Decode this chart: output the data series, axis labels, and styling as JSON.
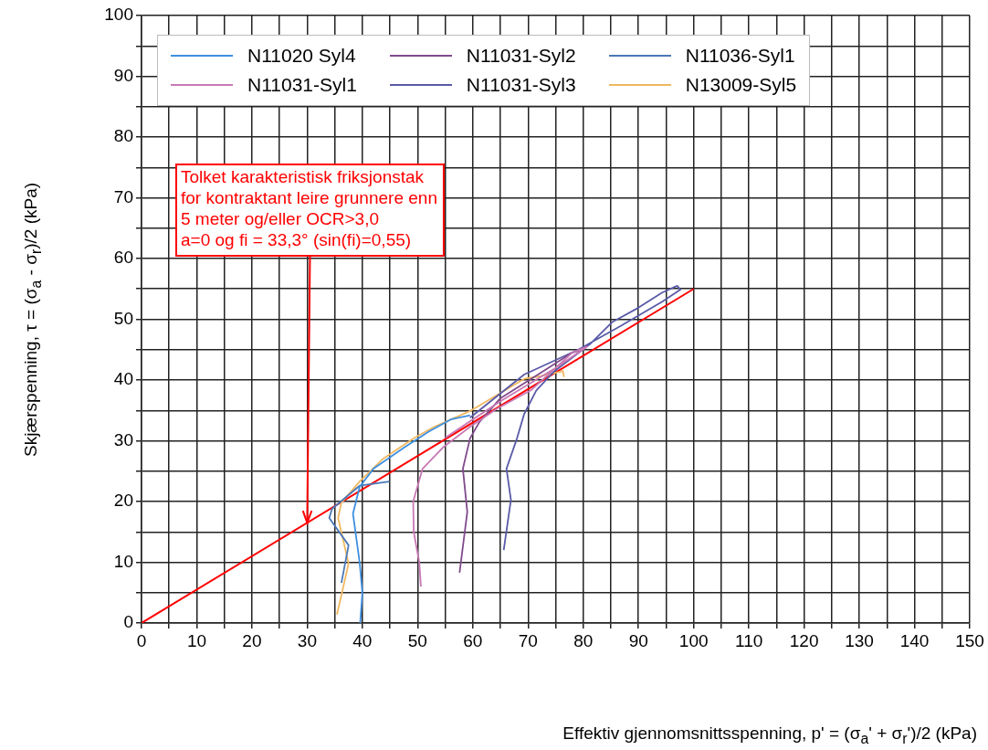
{
  "chart_data": {
    "type": "line",
    "xlabel": "Effektiv gjennomsnittsspenning, p' = (σ$_{a}$' + σ$_{r}$')/2  (kPa)",
    "ylabel": "Skjærspenning, τ = (σ$_{a}$ - σ$_{r}$)/2 (kPa)",
    "xlim": [
      0,
      150
    ],
    "ylim": [
      0,
      100
    ],
    "xticks": [
      0,
      {
        "value": 5,
        "label": null
      },
      10,
      {
        "value": 15,
        "label": null
      },
      20,
      {
        "value": 25,
        "label": null
      },
      30,
      {
        "value": 35,
        "label": null
      },
      40,
      {
        "value": 45,
        "label": null
      },
      50,
      {
        "value": 55,
        "label": null
      },
      60,
      {
        "value": 65,
        "label": null
      },
      70,
      {
        "value": 75,
        "label": null
      },
      80,
      {
        "value": 85,
        "label": null
      },
      90,
      {
        "value": 95,
        "label": null
      },
      100,
      {
        "value": 105,
        "label": null
      },
      110,
      {
        "value": 115,
        "label": null
      },
      120,
      {
        "value": 125,
        "label": null
      },
      130,
      {
        "value": 135,
        "label": null
      },
      140,
      {
        "value": 145,
        "label": null
      },
      150
    ],
    "yticks": [
      0,
      {
        "value": 5,
        "label": null
      },
      10,
      {
        "value": 15,
        "label": null
      },
      20,
      {
        "value": 25,
        "label": null
      },
      30,
      {
        "value": 35,
        "label": null
      },
      40,
      {
        "value": 45,
        "label": null
      },
      50,
      {
        "value": 55,
        "label": null
      },
      60,
      {
        "value": 65,
        "label": null
      },
      70,
      {
        "value": 75,
        "label": null
      },
      80,
      {
        "value": 85,
        "label": null
      },
      90,
      {
        "value": 95,
        "label": null
      },
      100
    ],
    "grid": true,
    "legend": "top",
    "marker": "none",
    "annotations": [
      {
        "text": "Tolket karakteristisk friksjonstak\nfor kontraktant leire grunnere enn\n5 meter og/eller OCR>3,0\na=0 og fi = 33,3° (sin(fi)=0,55)",
        "x": 30,
        "y": 16.5
      }
    ],
    "series": [
      {
        "name": "N11020 Syl4",
        "color": "#3d8fe0",
        "x": [
          39.6,
          40,
          39.5,
          38.3,
          39.5,
          42,
          47.6,
          52,
          56,
          59.5
        ],
        "values": [
          0,
          5,
          10,
          18,
          22.4,
          25.4,
          28.9,
          31.5,
          33.5,
          34.2
        ]
      },
      {
        "name": "N11031-Syl1",
        "color": "#c878b4",
        "x": [
          50.6,
          50.3,
          49.3,
          49.2,
          50.9,
          54.6,
          59.5,
          64.4,
          70.5,
          78,
          80.7,
          75,
          65,
          55
        ],
        "values": [
          6,
          10,
          15,
          20,
          25.4,
          28.9,
          32.3,
          35.3,
          38.3,
          44.5,
          45.5,
          42,
          36.5,
          30.5
        ]
      },
      {
        "name": "N11031-Syl2",
        "color": "#804a8c",
        "x": [
          57.6,
          59,
          58.2,
          59.5,
          61.2,
          65,
          72,
          78,
          80
        ],
        "values": [
          8.3,
          18.3,
          25.4,
          30.4,
          33.1,
          37,
          41,
          44.5,
          45
        ]
      },
      {
        "name": "N11031-Syl3",
        "color": "#5a5aa8",
        "x": [
          65.6,
          66.9,
          66.1,
          68,
          69.3,
          71.5,
          74.7,
          81.2,
          85.2,
          90,
          94.3,
          97,
          97.6,
          94.3,
          86.8,
          79.1,
          69.3,
          59.5
        ],
        "values": [
          12,
          20.3,
          25.4,
          30.4,
          34.4,
          38.3,
          41.4,
          45.9,
          49.5,
          51.9,
          54.4,
          55.5,
          54.9,
          52.9,
          48.9,
          45,
          40.9,
          33.8
        ]
      },
      {
        "name": "N11036-Syl1",
        "color": "#4a78b8",
        "x": [
          36.2,
          37.5,
          34,
          34.5,
          39.5,
          44.9
        ],
        "values": [
          6.6,
          12.8,
          17.3,
          18.8,
          22.6,
          23.3
        ]
      },
      {
        "name": "N13009-Syl5",
        "color": "#f0b860",
        "x": [
          35.4,
          37.5,
          35.6,
          36.2,
          39.5,
          43.7,
          49.3,
          53,
          59.5,
          69.3,
          72,
          76.3,
          76.5
        ],
        "values": [
          1.4,
          9.8,
          17.3,
          19.8,
          23.3,
          27,
          30.4,
          32.3,
          34.9,
          40.2,
          40.6,
          41.5,
          40.5
        ]
      },
      {
        "color": "#ff0000",
        "x": [
          0,
          100
        ],
        "values": [
          0,
          55
        ]
      }
    ]
  }
}
